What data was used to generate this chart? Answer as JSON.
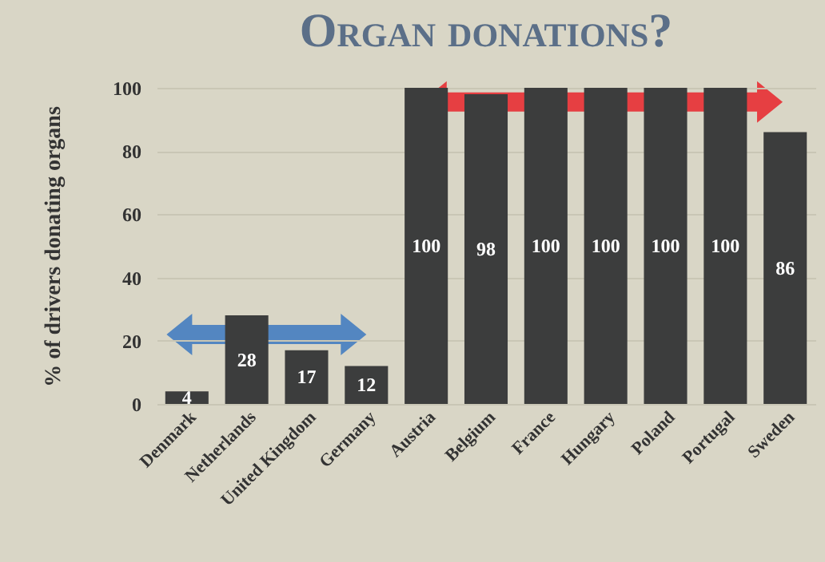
{
  "chart_data": {
    "type": "bar",
    "title": "Organ donations?",
    "ylabel": "% of drivers donating organs",
    "categories": [
      "Denmark",
      "Netherlands",
      "United Kingdom",
      "Germany",
      "Austria",
      "Belgium",
      "France",
      "Hungary",
      "Poland",
      "Portugal",
      "Sweden"
    ],
    "values": [
      4,
      28,
      17,
      12,
      100,
      98,
      100,
      100,
      100,
      100,
      86
    ],
    "color": "#3c3d3d",
    "ylim": [
      0,
      100
    ],
    "yticks": [
      0,
      20,
      40,
      60,
      80,
      100
    ],
    "grid": "y",
    "data_labels": true
  }
}
